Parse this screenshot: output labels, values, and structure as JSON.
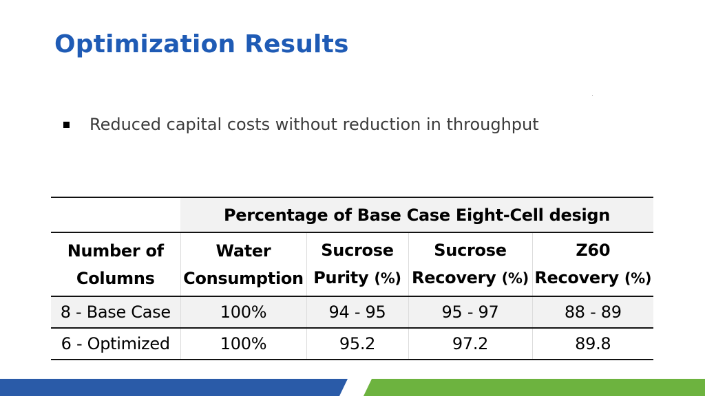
{
  "slide": {
    "title": "Optimization Results",
    "bullets": [
      "Reduced capital costs without reduction in throughput"
    ]
  },
  "table": {
    "supra_header": "Percentage of Base Case Eight-Cell design",
    "headers": [
      {
        "line1": "Number of",
        "line2": "Columns",
        "unit": ""
      },
      {
        "line1": "Water",
        "line2": "Consumption",
        "unit": ""
      },
      {
        "line1": "Sucrose",
        "line2": "Purity",
        "unit": "(%)"
      },
      {
        "line1": "Sucrose",
        "line2": "Recovery",
        "unit": "(%)"
      },
      {
        "line1": "Z60",
        "line2": "Recovery",
        "unit": "(%)"
      }
    ],
    "rows": [
      [
        "8 - Base Case",
        "100%",
        "94 - 95",
        "95 - 97",
        "88 - 89"
      ],
      [
        "6 - Optimized",
        "100%",
        "95.2",
        "97.2",
        "89.8"
      ]
    ]
  },
  "colors": {
    "title": "#1f5bb5",
    "footer_blue": "#2a5ba8",
    "footer_green": "#6db33f",
    "row_shade": "#f2f2f2"
  }
}
